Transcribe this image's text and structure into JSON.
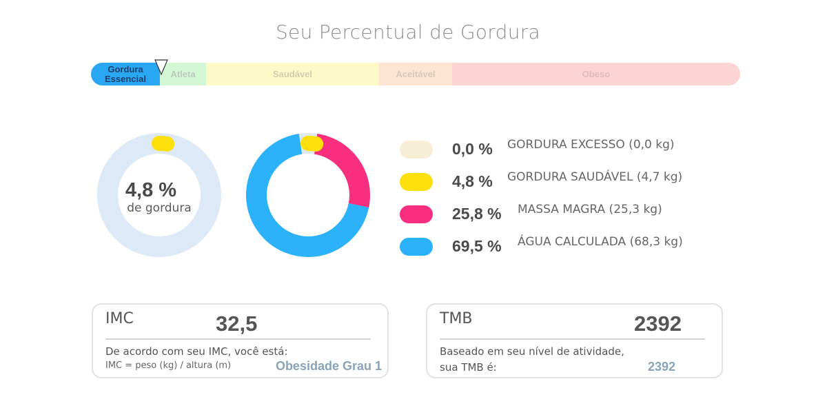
{
  "title": "Seu Percentual de Gordura",
  "scale": {
    "segments": [
      {
        "label": "Gordura Essencial",
        "color": "#2aa7f2",
        "text_color": "#1c3f6e"
      },
      {
        "label": "Atleta",
        "color": "#d4f8d4",
        "text_color": "#bac9bc"
      },
      {
        "label": "Saudável",
        "color": "#fdfac8",
        "text_color": "#cfcdb0"
      },
      {
        "label": "Aceitável",
        "color": "#fde5d2",
        "text_color": "#d8c6b8"
      },
      {
        "label": "Obeso",
        "color": "#fbd4d4",
        "text_color": "#dcbcbe"
      }
    ]
  },
  "body_fat": {
    "value": "4,8 %",
    "subtitle": "de gordura",
    "fraction": 0.048
  },
  "composition": [
    {
      "pct": "0,0 %",
      "label": "GORDURA EXCESSO (0,0 kg)",
      "value": 0.0,
      "color": "#f7eed6"
    },
    {
      "pct": "4,8 %",
      "label": "GORDURA SAUDÁVEL (4,7 kg)",
      "value": 4.8,
      "color": "#fde00b"
    },
    {
      "pct": "25,8 %",
      "label": "MASSA MAGRA (25,3 kg)",
      "value": 25.8,
      "color": "#f72f7e"
    },
    {
      "pct": "69,5 %",
      "label": "ÁGUA CALCULADA (68,3 kg)",
      "value": 69.5,
      "color": "#2bb2fb"
    }
  ],
  "imc": {
    "label": "IMC",
    "value": "32,5",
    "description": "De acordo com seu IMC, você está:",
    "formula": "IMC = peso (kg) / altura (m)",
    "result": "Obesidade Grau 1"
  },
  "tmb": {
    "label": "TMB",
    "value": "2392",
    "description_line1": "Baseado em seu nível de atividade,",
    "description_line2": "sua TMB é:",
    "result": "2392"
  }
}
